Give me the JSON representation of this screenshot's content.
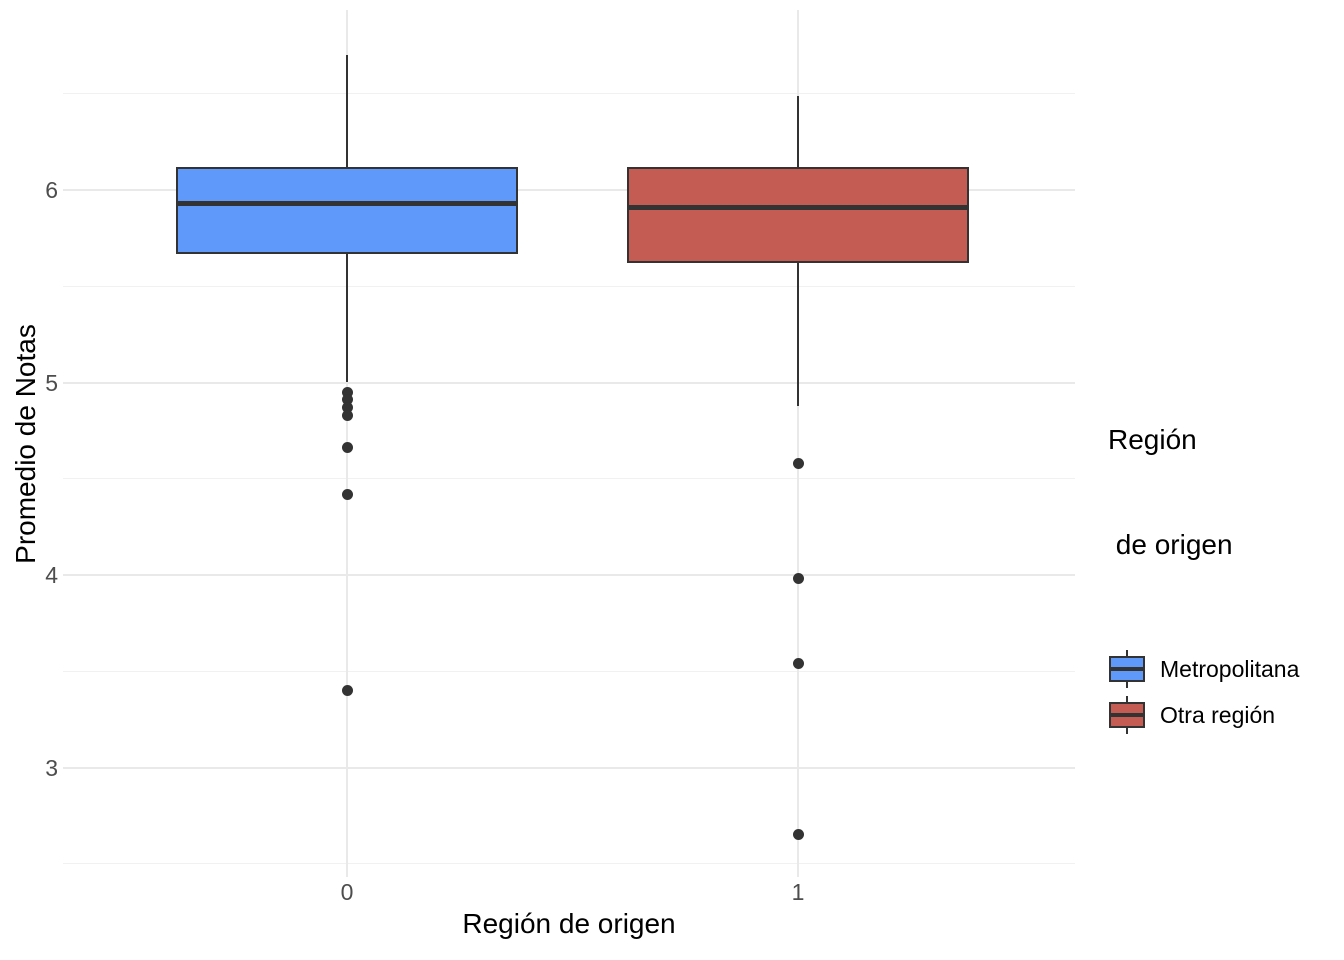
{
  "chart_data": {
    "type": "boxplot",
    "title": "",
    "xlabel": "Región de origen",
    "ylabel": "Promedio de Notas",
    "x_categories": [
      "0",
      "1"
    ],
    "y_ticks": [
      6,
      5,
      4,
      3
    ],
    "y_minor_gridlines": [
      6.5,
      5.5,
      4.5,
      3.5,
      2.5
    ],
    "ylim": [
      2.42,
      6.94
    ],
    "grid": true,
    "legend_position": "right",
    "legend": {
      "title_lines": [
        "Región",
        " de origen"
      ],
      "entries": [
        {
          "label": "Metropolitana",
          "fill": "#5F99FA"
        },
        {
          "label": "Otra región",
          "fill": "#C45C54"
        }
      ]
    },
    "series": [
      {
        "category": "0",
        "name": "Metropolitana",
        "fill": "#5F99FA",
        "whisker_high": 6.7,
        "q3": 6.12,
        "median": 5.93,
        "q1": 5.67,
        "whisker_low": 5.0,
        "outliers": [
          4.95,
          4.91,
          4.87,
          4.83,
          4.66,
          4.42,
          3.4
        ]
      },
      {
        "category": "1",
        "name": "Otra región",
        "fill": "#C45C54",
        "whisker_high": 6.49,
        "q3": 6.12,
        "median": 5.91,
        "q1": 5.62,
        "whisker_low": 4.88,
        "outliers": [
          4.58,
          3.98,
          3.54,
          2.65
        ]
      }
    ],
    "colors": {
      "stroke": "#333333",
      "grid_major": "#e9e9e9",
      "grid_minor": "#f1f1f1",
      "tick_text": "#4d4d4d",
      "title_text": "#000000",
      "background": "#ffffff"
    }
  }
}
